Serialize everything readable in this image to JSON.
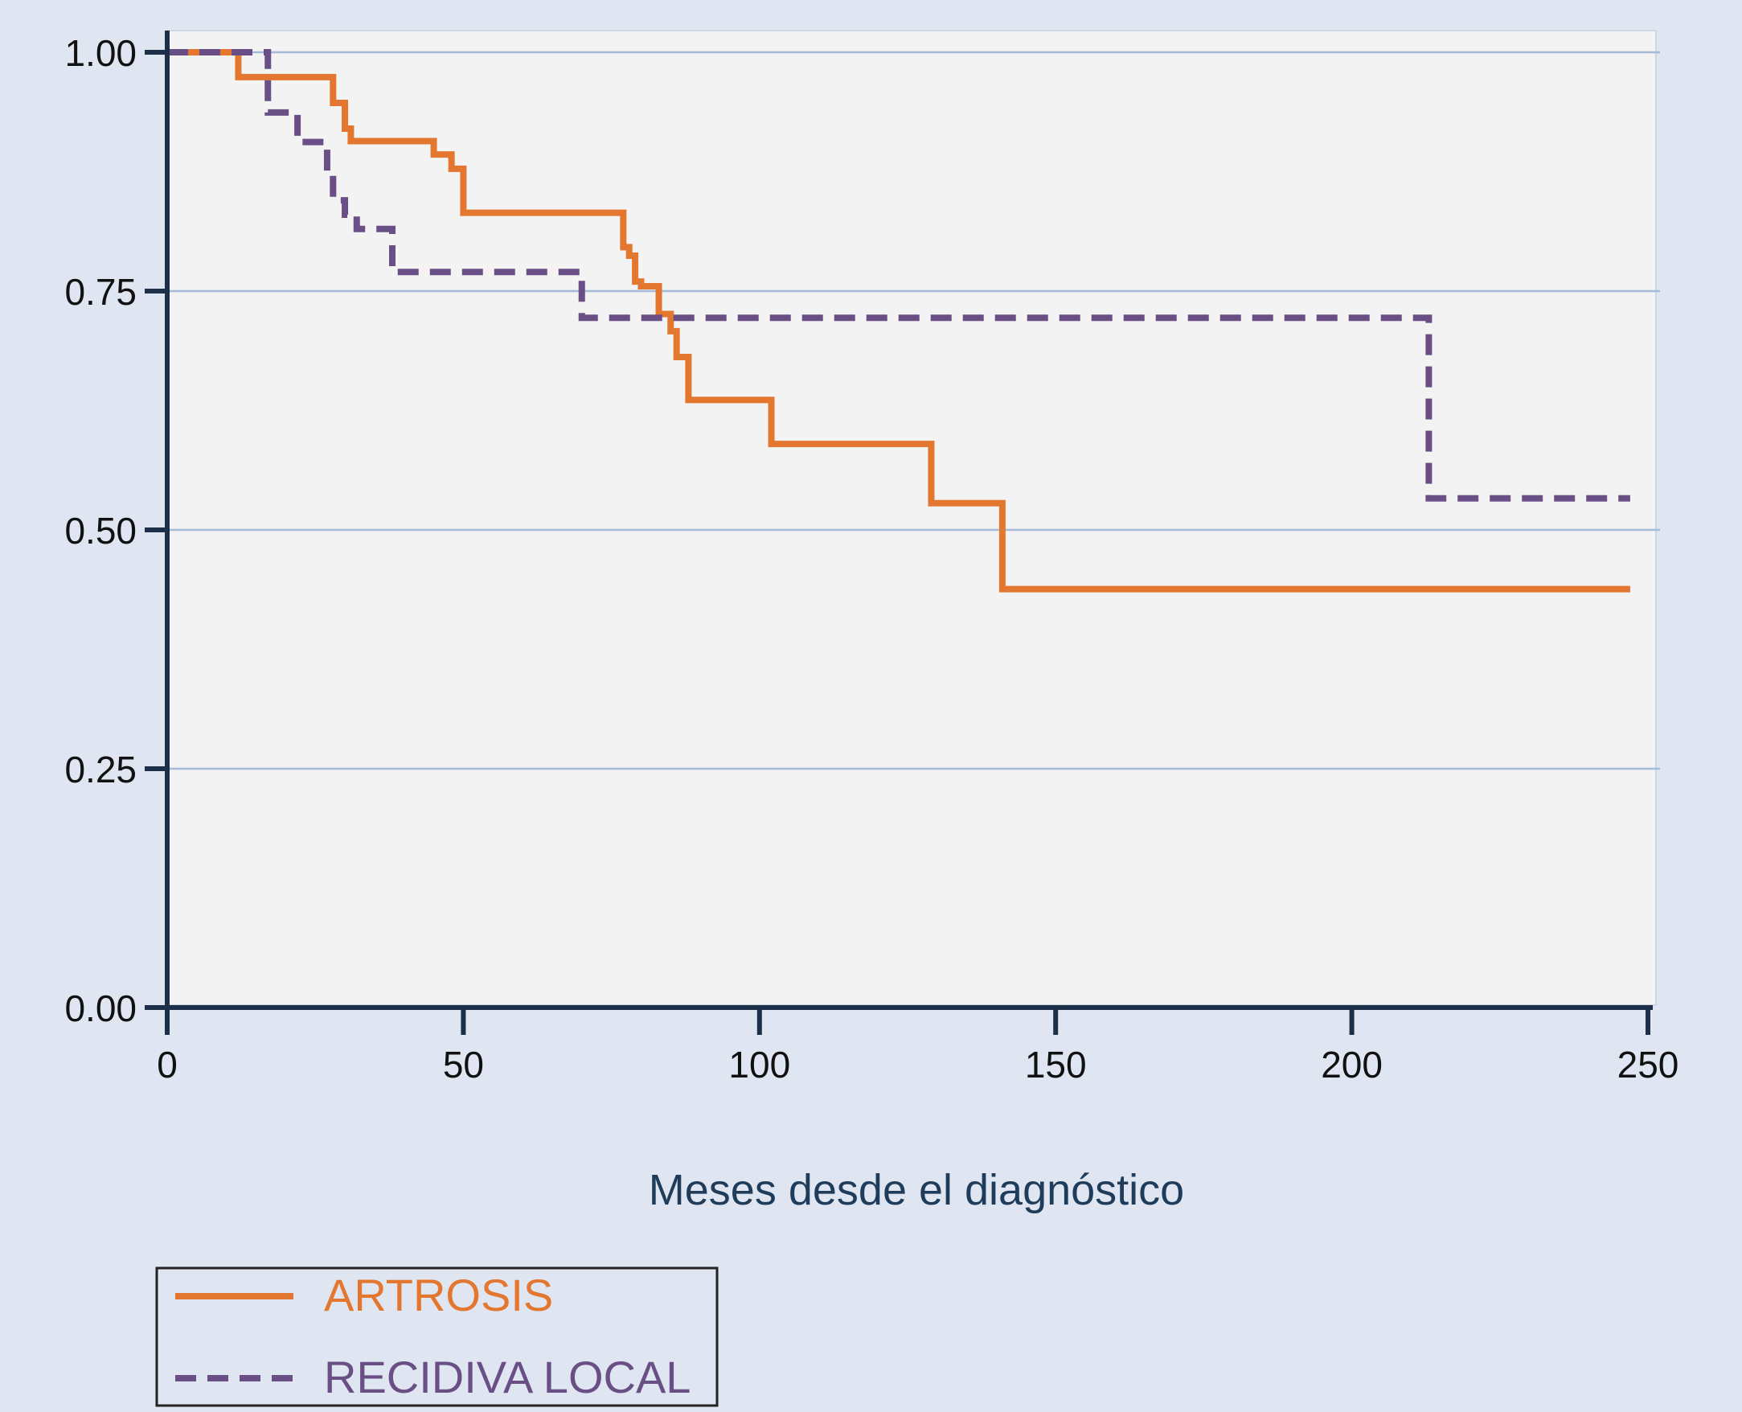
{
  "chart_data": {
    "type": "line",
    "step": true,
    "title": "",
    "xlabel": "Meses desde el diagnóstico",
    "ylabel": "",
    "xlim": [
      0,
      250
    ],
    "ylim": [
      0,
      1
    ],
    "xticks": [
      0,
      50,
      100,
      150,
      200,
      250
    ],
    "xtick_labels": [
      "0",
      "50",
      "100",
      "150",
      "200",
      "250"
    ],
    "yticks": [
      0,
      0.25,
      0.5,
      0.75,
      1
    ],
    "ytick_labels": [
      "0.00",
      "0.25",
      "0.50",
      "0.75",
      "1.00"
    ],
    "grid": "horizontal",
    "legend_position": "bottom-left",
    "series": [
      {
        "name": "ARTROSIS",
        "color": "#e4772f",
        "dash": "solid",
        "x": [
          0,
          12,
          28,
          30,
          31,
          45,
          48,
          50,
          77,
          78,
          79,
          80,
          83,
          85,
          86,
          88,
          102,
          129,
          141,
          247
        ],
        "y": [
          1.0,
          0.974,
          0.947,
          0.92,
          0.907,
          0.893,
          0.878,
          0.832,
          0.796,
          0.787,
          0.76,
          0.755,
          0.726,
          0.708,
          0.681,
          0.636,
          0.59,
          0.528,
          0.438,
          0.438
        ]
      },
      {
        "name": "RECIDIVA LOCAL",
        "color": "#6a4f86",
        "dash": "dashed",
        "x": [
          0,
          17,
          22,
          27,
          28,
          30,
          32,
          38,
          70,
          213,
          247
        ],
        "y": [
          1.0,
          0.937,
          0.906,
          0.876,
          0.845,
          0.83,
          0.815,
          0.77,
          0.722,
          0.533,
          0.533
        ]
      }
    ]
  }
}
